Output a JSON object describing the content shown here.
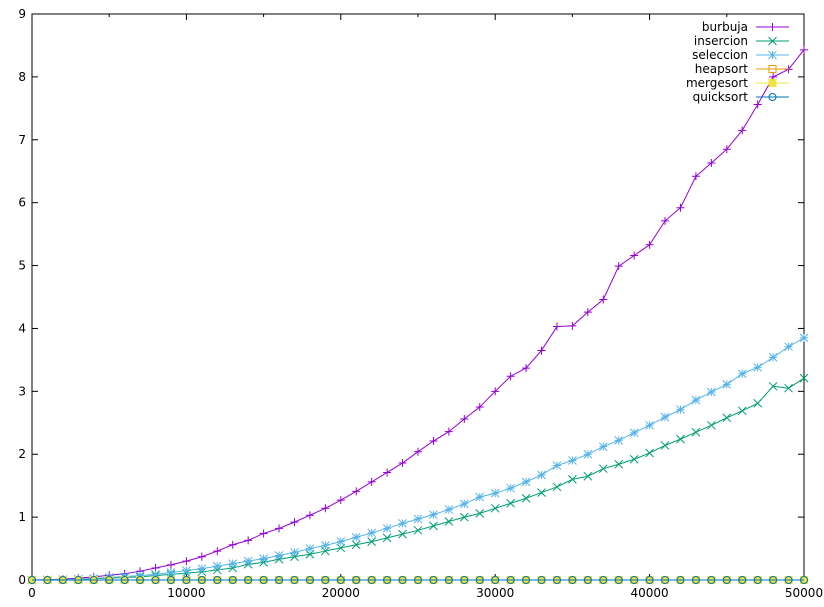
{
  "chart_data": {
    "type": "line",
    "title": "",
    "xlabel": "",
    "ylabel": "",
    "xlim": [
      0,
      50000
    ],
    "ylim": [
      0,
      9
    ],
    "xticks": [
      0,
      10000,
      20000,
      30000,
      40000,
      50000
    ],
    "yticks": [
      0,
      1,
      2,
      3,
      4,
      5,
      6,
      7,
      8,
      9
    ],
    "grid": false,
    "legend_position": "top-right",
    "x": [
      0,
      1000,
      2000,
      3000,
      4000,
      5000,
      6000,
      7000,
      8000,
      9000,
      10000,
      11000,
      12000,
      13000,
      14000,
      15000,
      16000,
      17000,
      18000,
      19000,
      20000,
      21000,
      22000,
      23000,
      24000,
      25000,
      26000,
      27000,
      28000,
      29000,
      30000,
      31000,
      32000,
      33000,
      34000,
      35000,
      36000,
      37000,
      38000,
      39000,
      40000,
      41000,
      42000,
      43000,
      44000,
      45000,
      46000,
      47000,
      48000,
      49000,
      50000
    ],
    "series": [
      {
        "name": "burbuja",
        "color": "#9400d3",
        "marker": "plus",
        "values": [
          0,
          0.003,
          0.013,
          0.03,
          0.05,
          0.075,
          0.1,
          0.14,
          0.19,
          0.24,
          0.3,
          0.37,
          0.46,
          0.56,
          0.63,
          0.74,
          0.82,
          0.92,
          1.03,
          1.14,
          1.27,
          1.41,
          1.56,
          1.71,
          1.86,
          2.04,
          2.21,
          2.36,
          2.56,
          2.75,
          3.0,
          3.24,
          3.37,
          3.65,
          4.03,
          4.04,
          4.26,
          4.46,
          4.99,
          5.16,
          5.33,
          5.71,
          5.92,
          6.42,
          6.63,
          6.85,
          7.15,
          7.56,
          8.0,
          8.12,
          8.43
        ]
      },
      {
        "name": "insercion",
        "color": "#009e73",
        "marker": "cross",
        "values": [
          0,
          0.001,
          0.005,
          0.01,
          0.02,
          0.03,
          0.04,
          0.05,
          0.07,
          0.09,
          0.11,
          0.13,
          0.16,
          0.19,
          0.25,
          0.28,
          0.33,
          0.37,
          0.41,
          0.46,
          0.51,
          0.56,
          0.61,
          0.67,
          0.73,
          0.79,
          0.86,
          0.93,
          1.0,
          1.06,
          1.14,
          1.22,
          1.3,
          1.39,
          1.48,
          1.6,
          1.65,
          1.77,
          1.84,
          1.92,
          2.02,
          2.14,
          2.24,
          2.35,
          2.46,
          2.58,
          2.69,
          2.81,
          3.08,
          3.05,
          3.21
        ]
      },
      {
        "name": "seleccion",
        "color": "#56b4e9",
        "marker": "star",
        "values": [
          0,
          0.002,
          0.006,
          0.013,
          0.025,
          0.04,
          0.055,
          0.07,
          0.09,
          0.12,
          0.15,
          0.18,
          0.22,
          0.26,
          0.3,
          0.34,
          0.39,
          0.44,
          0.5,
          0.55,
          0.61,
          0.68,
          0.75,
          0.82,
          0.9,
          0.97,
          1.04,
          1.12,
          1.21,
          1.32,
          1.38,
          1.46,
          1.56,
          1.67,
          1.82,
          1.9,
          2.0,
          2.12,
          2.22,
          2.34,
          2.46,
          2.59,
          2.71,
          2.86,
          2.99,
          3.11,
          3.28,
          3.38,
          3.54,
          3.71,
          3.85
        ]
      },
      {
        "name": "heapsort",
        "color": "#e69f00",
        "marker": "square",
        "values": [
          0,
          0,
          0,
          0,
          0,
          0,
          0,
          0,
          0,
          0,
          0,
          0,
          0,
          0,
          0,
          0,
          0,
          0,
          0,
          0,
          0,
          0,
          0,
          0,
          0,
          0,
          0,
          0,
          0,
          0,
          0,
          0,
          0,
          0,
          0,
          0,
          0,
          0,
          0,
          0,
          0,
          0,
          0,
          0,
          0,
          0,
          0,
          0,
          0,
          0,
          0
        ]
      },
      {
        "name": "mergesort",
        "color": "#f0e442",
        "marker": "filled-square",
        "values": [
          0,
          0,
          0,
          0,
          0,
          0,
          0,
          0,
          0,
          0,
          0,
          0,
          0,
          0,
          0,
          0,
          0,
          0,
          0,
          0,
          0,
          0,
          0,
          0,
          0,
          0,
          0,
          0,
          0,
          0,
          0,
          0,
          0,
          0,
          0,
          0,
          0,
          0,
          0,
          0,
          0,
          0,
          0,
          0,
          0,
          0,
          0,
          0,
          0,
          0,
          0
        ]
      },
      {
        "name": "quicksort",
        "color": "#0072b2",
        "marker": "circle",
        "values": [
          0,
          0,
          0,
          0,
          0,
          0,
          0,
          0,
          0,
          0,
          0,
          0,
          0,
          0,
          0,
          0,
          0,
          0,
          0,
          0,
          0,
          0,
          0,
          0,
          0,
          0,
          0,
          0,
          0,
          0,
          0,
          0,
          0,
          0,
          0,
          0,
          0,
          0,
          0,
          0,
          0,
          0,
          0,
          0,
          0,
          0,
          0,
          0,
          0,
          0,
          0
        ]
      }
    ]
  }
}
